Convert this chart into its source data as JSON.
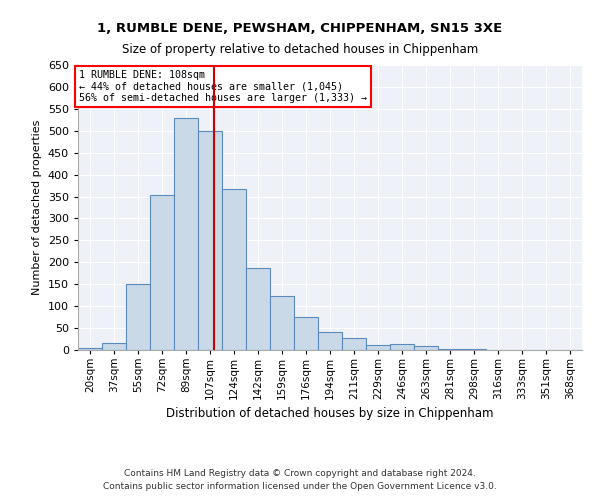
{
  "title1": "1, RUMBLE DENE, PEWSHAM, CHIPPENHAM, SN15 3XE",
  "title2": "Size of property relative to detached houses in Chippenham",
  "xlabel": "Distribution of detached houses by size in Chippenham",
  "ylabel": "Number of detached properties",
  "footnote1": "Contains HM Land Registry data © Crown copyright and database right 2024.",
  "footnote2": "Contains public sector information licensed under the Open Government Licence v3.0.",
  "annotation_line1": "1 RUMBLE DENE: 108sqm",
  "annotation_line2": "← 44% of detached houses are smaller (1,045)",
  "annotation_line3": "56% of semi-detached houses are larger (1,333) →",
  "property_size": 108,
  "bar_color": "#c9d9e8",
  "bar_edge_color": "#5a8bbf",
  "marker_color": "#cc0000",
  "bg_color": "#eef2f8",
  "categories": [
    "20sqm",
    "37sqm",
    "55sqm",
    "72sqm",
    "89sqm",
    "107sqm",
    "124sqm",
    "142sqm",
    "159sqm",
    "176sqm",
    "194sqm",
    "211sqm",
    "229sqm",
    "246sqm",
    "263sqm",
    "281sqm",
    "298sqm",
    "316sqm",
    "333sqm",
    "351sqm",
    "368sqm"
  ],
  "bin_edges": [
    11.5,
    28.5,
    45.5,
    62.5,
    79.5,
    96.5,
    113.5,
    130.5,
    147.5,
    164.5,
    181.5,
    198.5,
    215.5,
    232.5,
    249.5,
    266.5,
    283.5,
    300.5,
    317.5,
    334.5,
    351.5,
    368.5
  ],
  "values": [
    5,
    15,
    150,
    353,
    530,
    500,
    367,
    187,
    123,
    76,
    40,
    27,
    12,
    13,
    8,
    3,
    2,
    1,
    1,
    0,
    0
  ],
  "ylim": [
    0,
    650
  ],
  "yticks": [
    0,
    50,
    100,
    150,
    200,
    250,
    300,
    350,
    400,
    450,
    500,
    550,
    600,
    650
  ]
}
